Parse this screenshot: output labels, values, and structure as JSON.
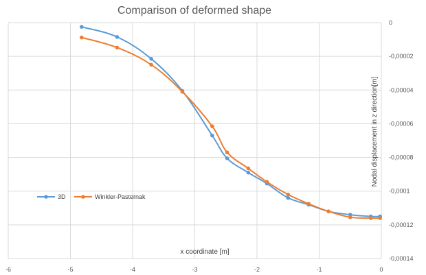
{
  "chart_data": {
    "type": "line",
    "title": "Comparison of deformed shape",
    "xlabel": "x coordinate [m]",
    "ylabel": "Nodal displacement in z direction[m]",
    "xlim": [
      -6,
      0
    ],
    "ylim": [
      -0.00014,
      0
    ],
    "x_ticks": [
      -6,
      -5,
      -4,
      -3,
      -2,
      -1,
      0
    ],
    "y_ticks": [
      0,
      -2e-05,
      -4e-05,
      -6e-05,
      -8e-05,
      -0.0001,
      -0.00012,
      -0.00014
    ],
    "y_tick_labels": [
      "0",
      "-0,00002",
      "-0,00004",
      "-0,00006",
      "-0,00008",
      "-0,0001",
      "-0,00012",
      "-0,00014"
    ],
    "x_tick_labels": [
      "-6",
      "-5",
      "-4",
      "-3",
      "-2",
      "-1",
      "0"
    ],
    "x_axis_position": "top",
    "y_axis_position": "right",
    "grid": true,
    "legend_position": "left",
    "series": [
      {
        "name": "3D",
        "color": "#5B9BD5",
        "x": [
          -4.82,
          -4.25,
          -3.7,
          -3.2,
          -2.72,
          -2.48,
          -2.14,
          -1.84,
          -1.5,
          -1.17,
          -0.85,
          -0.5,
          -0.17,
          -0.02
        ],
        "y": [
          -2.5e-06,
          -8.5e-06,
          -2.15e-05,
          -4.05e-05,
          -6.7e-05,
          -8.05e-05,
          -8.9e-05,
          -9.55e-05,
          -0.000104,
          -0.000108,
          -0.000112,
          -0.000114,
          -0.000115,
          -0.000115
        ]
      },
      {
        "name": "Winkler-Pasternak",
        "color": "#ED7D31",
        "x": [
          -4.82,
          -4.25,
          -3.7,
          -3.2,
          -2.72,
          -2.48,
          -2.14,
          -1.84,
          -1.5,
          -1.17,
          -0.85,
          -0.5,
          -0.17,
          -0.02
        ],
        "y": [
          -8.8e-06,
          -1.48e-05,
          -2.5e-05,
          -4.1e-05,
          -6.15e-05,
          -7.7e-05,
          -8.65e-05,
          -9.45e-05,
          -0.000102,
          -0.0001075,
          -0.000112,
          -0.0001155,
          -0.000116,
          -0.000116
        ]
      }
    ]
  }
}
